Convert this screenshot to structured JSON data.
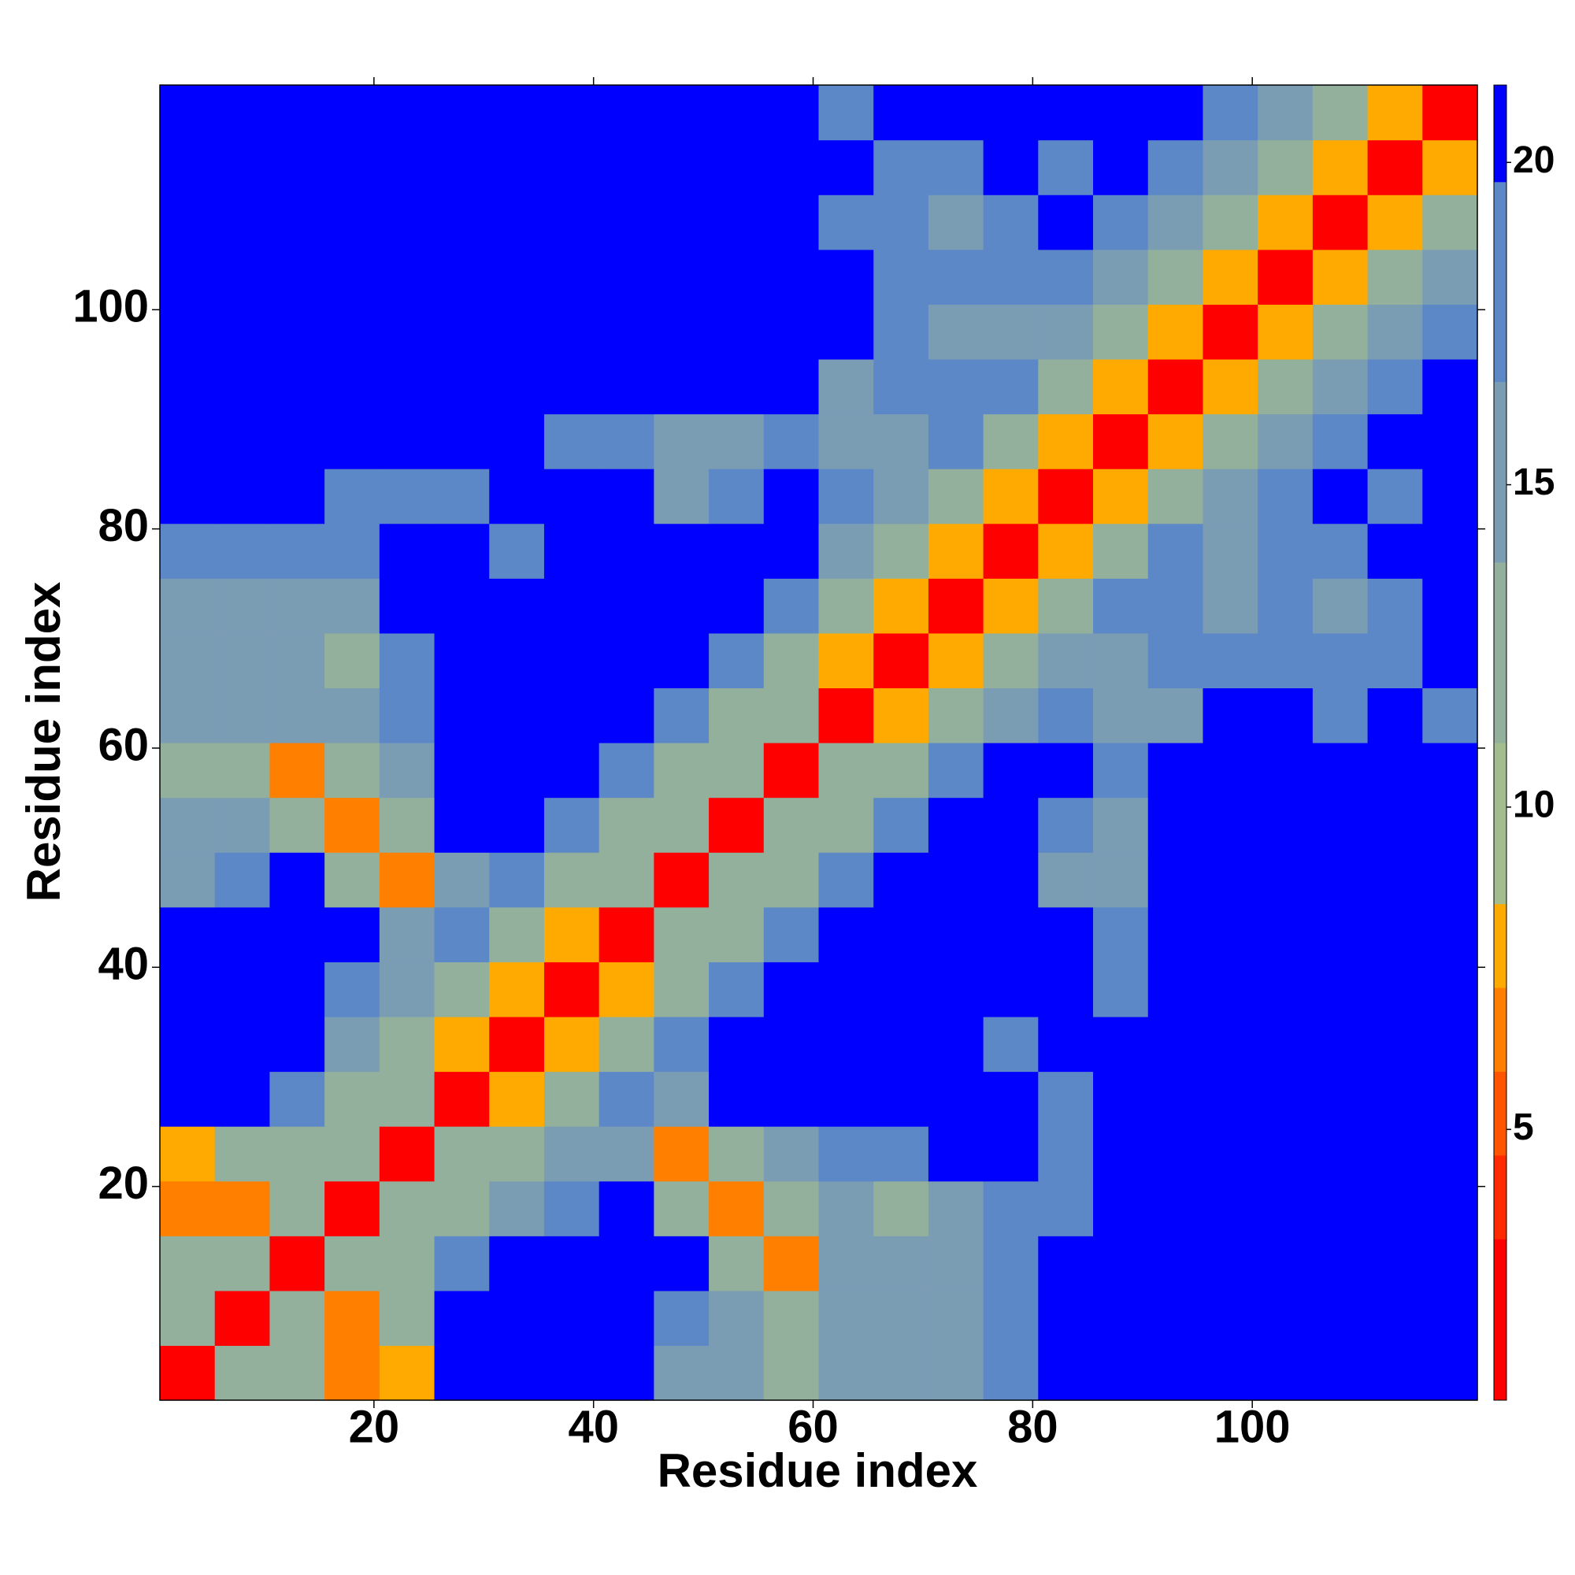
{
  "chart_data": {
    "type": "heatmap",
    "xlabel": "Residue index",
    "ylabel": "Residue index",
    "x": [
      3,
      8,
      13,
      18,
      23,
      28,
      33,
      38,
      43,
      48,
      53,
      58,
      63,
      68,
      73,
      78,
      83,
      88,
      93,
      98,
      103,
      108,
      113,
      118
    ],
    "y": [
      3,
      8,
      13,
      18,
      23,
      28,
      33,
      38,
      43,
      48,
      53,
      58,
      63,
      68,
      73,
      78,
      83,
      88,
      93,
      98,
      103,
      108,
      113,
      118
    ],
    "xlim": [
      0.5,
      120.5
    ],
    "ylim": [
      0.5,
      120.5
    ],
    "xticks": [
      20,
      40,
      60,
      80,
      100
    ],
    "yticks": [
      20,
      40,
      60,
      80,
      100
    ],
    "zlim": [
      0.8,
      21.2
    ],
    "zticks": [
      5,
      10,
      15,
      20
    ],
    "levels": [
      0.8,
      3.3,
      4.6,
      5.9,
      7.2,
      8.5,
      11,
      13.8,
      16.6,
      19.7,
      21.2
    ],
    "colors": [
      "#ff0000",
      "#ff2a00",
      "#ff5500",
      "#ff7f00",
      "#ffaa00",
      "#a3bd8e",
      "#93b09c",
      "#7b9db4",
      "#5c88c8",
      "#0000ff"
    ],
    "z": [
      [
        2,
        11,
        13,
        7,
        8,
        22,
        22,
        22,
        22,
        16,
        14,
        13,
        16,
        15,
        14,
        19,
        22,
        22,
        22,
        22,
        22,
        22,
        22,
        22
      ],
      [
        11,
        2,
        11,
        7,
        12,
        22,
        22,
        22,
        22,
        19,
        14,
        13,
        15,
        14,
        16,
        18,
        22,
        22,
        22,
        22,
        22,
        22,
        22,
        22
      ],
      [
        13,
        11,
        2,
        11,
        13,
        17,
        22,
        22,
        22,
        22,
        11,
        7,
        14,
        16,
        15,
        19,
        22,
        22,
        22,
        22,
        22,
        22,
        22,
        22
      ],
      [
        7,
        7,
        11,
        2,
        11,
        13,
        16,
        19,
        22,
        12,
        7,
        12,
        15,
        13,
        15,
        17,
        18,
        22,
        22,
        22,
        22,
        22,
        22,
        22
      ],
      [
        8,
        12,
        13,
        11,
        2,
        11,
        13,
        16,
        15,
        7,
        11,
        16,
        17,
        17,
        22,
        22,
        17,
        22,
        22,
        22,
        22,
        22,
        22,
        22
      ],
      [
        22,
        22,
        17,
        13,
        11,
        2,
        8,
        13,
        17,
        16,
        22,
        22,
        22,
        22,
        22,
        22,
        18,
        22,
        22,
        22,
        22,
        22,
        22,
        22
      ],
      [
        22,
        22,
        22,
        16,
        13,
        8,
        2,
        8,
        13,
        17,
        22,
        22,
        22,
        22,
        22,
        19,
        22,
        22,
        22,
        22,
        22,
        22,
        22,
        22
      ],
      [
        22,
        22,
        22,
        19,
        16,
        13,
        8,
        2,
        8,
        13,
        17,
        22,
        22,
        22,
        22,
        22,
        22,
        19,
        22,
        22,
        22,
        22,
        22,
        22
      ],
      [
        22,
        22,
        22,
        22,
        15,
        17,
        13,
        8,
        2,
        11,
        13,
        17,
        22,
        22,
        22,
        22,
        22,
        18,
        22,
        22,
        22,
        22,
        22,
        22
      ],
      [
        16,
        19,
        22,
        12,
        7,
        16,
        17,
        13,
        11,
        2,
        11,
        13,
        17,
        22,
        22,
        22,
        16,
        14,
        22,
        22,
        22,
        22,
        22,
        22
      ],
      [
        14,
        14,
        11,
        7,
        11,
        22,
        22,
        17,
        13,
        11,
        2,
        11,
        13,
        17,
        22,
        22,
        17,
        15,
        22,
        22,
        22,
        22,
        22,
        22
      ],
      [
        13,
        13,
        7,
        12,
        16,
        22,
        22,
        22,
        17,
        13,
        11,
        2,
        11,
        13,
        17,
        22,
        22,
        17,
        22,
        22,
        22,
        22,
        22,
        22
      ],
      [
        16,
        15,
        14,
        15,
        17,
        22,
        22,
        22,
        22,
        17,
        13,
        11,
        2,
        8,
        13,
        16,
        19,
        14,
        16,
        22,
        22,
        19,
        22,
        18
      ],
      [
        15,
        14,
        16,
        13,
        17,
        22,
        22,
        22,
        22,
        22,
        17,
        13,
        8,
        2,
        8,
        13,
        16,
        14,
        17,
        19,
        18,
        17,
        17,
        22
      ],
      [
        14,
        16,
        15,
        15,
        22,
        22,
        22,
        22,
        22,
        22,
        22,
        17,
        13,
        8,
        2,
        8,
        13,
        17,
        18,
        16,
        17,
        16,
        18,
        22
      ],
      [
        19,
        18,
        19,
        17,
        22,
        22,
        19,
        22,
        22,
        22,
        22,
        22,
        16,
        13,
        8,
        2,
        8,
        13,
        17,
        16,
        18,
        19,
        22,
        22
      ],
      [
        22,
        22,
        22,
        18,
        17,
        18,
        22,
        22,
        22,
        16,
        17,
        22,
        19,
        16,
        13,
        8,
        2,
        8,
        13,
        16,
        19,
        20,
        19,
        22
      ],
      [
        22,
        22,
        22,
        22,
        22,
        22,
        22,
        19,
        18,
        14,
        15,
        17,
        14,
        14,
        17,
        13,
        8,
        2,
        8,
        13,
        16,
        19,
        22,
        22
      ],
      [
        22,
        22,
        22,
        22,
        22,
        22,
        22,
        22,
        22,
        22,
        22,
        22,
        16,
        17,
        18,
        17,
        13,
        8,
        2,
        8,
        13,
        16,
        19,
        22
      ],
      [
        22,
        22,
        22,
        22,
        22,
        22,
        22,
        22,
        22,
        22,
        22,
        22,
        22,
        19,
        16,
        16,
        16,
        13,
        8,
        2,
        8,
        13,
        16,
        19
      ],
      [
        22,
        22,
        22,
        22,
        22,
        22,
        22,
        22,
        22,
        22,
        22,
        22,
        22,
        18,
        17,
        18,
        19,
        16,
        13,
        8,
        2,
        8,
        13,
        16
      ],
      [
        22,
        22,
        22,
        22,
        22,
        22,
        22,
        22,
        22,
        22,
        22,
        22,
        19,
        17,
        16,
        19,
        20,
        19,
        16,
        13,
        8,
        2,
        8,
        13
      ],
      [
        22,
        22,
        22,
        22,
        22,
        22,
        22,
        22,
        22,
        22,
        22,
        22,
        22,
        17,
        18,
        22,
        19,
        22,
        19,
        16,
        13,
        8,
        2,
        8
      ],
      [
        22,
        22,
        22,
        22,
        22,
        22,
        22,
        22,
        22,
        22,
        22,
        22,
        18,
        22,
        22,
        22,
        22,
        22,
        22,
        19,
        16,
        13,
        8,
        2
      ]
    ]
  }
}
